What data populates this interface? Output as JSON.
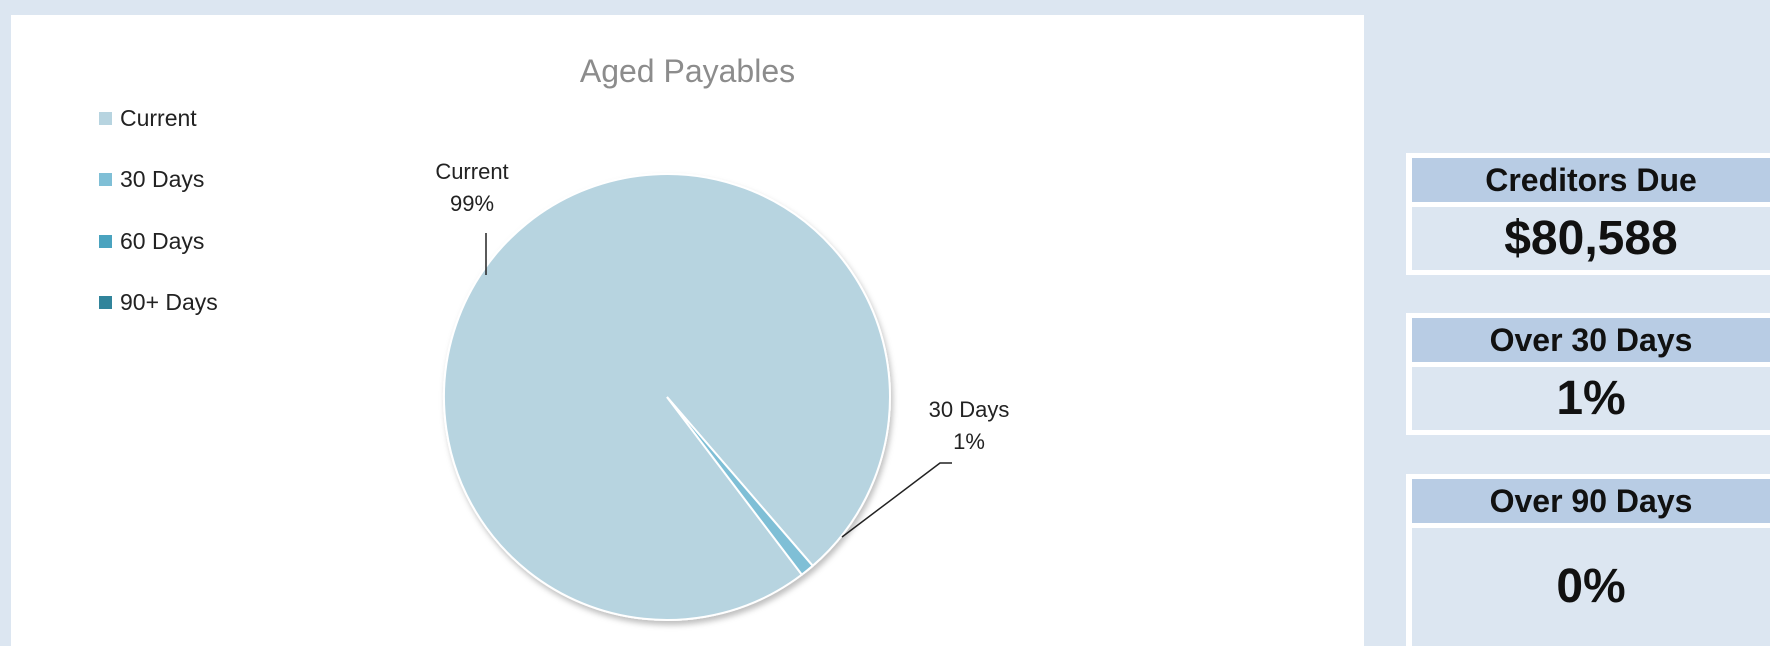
{
  "chart_data": {
    "type": "pie",
    "title": "Aged Payables",
    "legend_position": "top-left",
    "categories": [
      "Current",
      "30 Days",
      "60 Days",
      "90+ Days"
    ],
    "values": [
      99,
      1,
      0,
      0
    ],
    "colors": [
      "#b7d4e0",
      "#7fbfd6",
      "#4aa3bf",
      "#31849b"
    ],
    "data_labels": [
      {
        "category": "Current",
        "percent": "99%"
      },
      {
        "category": "30 Days",
        "percent": "1%"
      }
    ]
  },
  "kpis": [
    {
      "label": "Creditors Due",
      "value": "$80,588"
    },
    {
      "label": "Over 30 Days",
      "value": "1%"
    },
    {
      "label": "Over 90 Days",
      "value": "0%"
    }
  ]
}
